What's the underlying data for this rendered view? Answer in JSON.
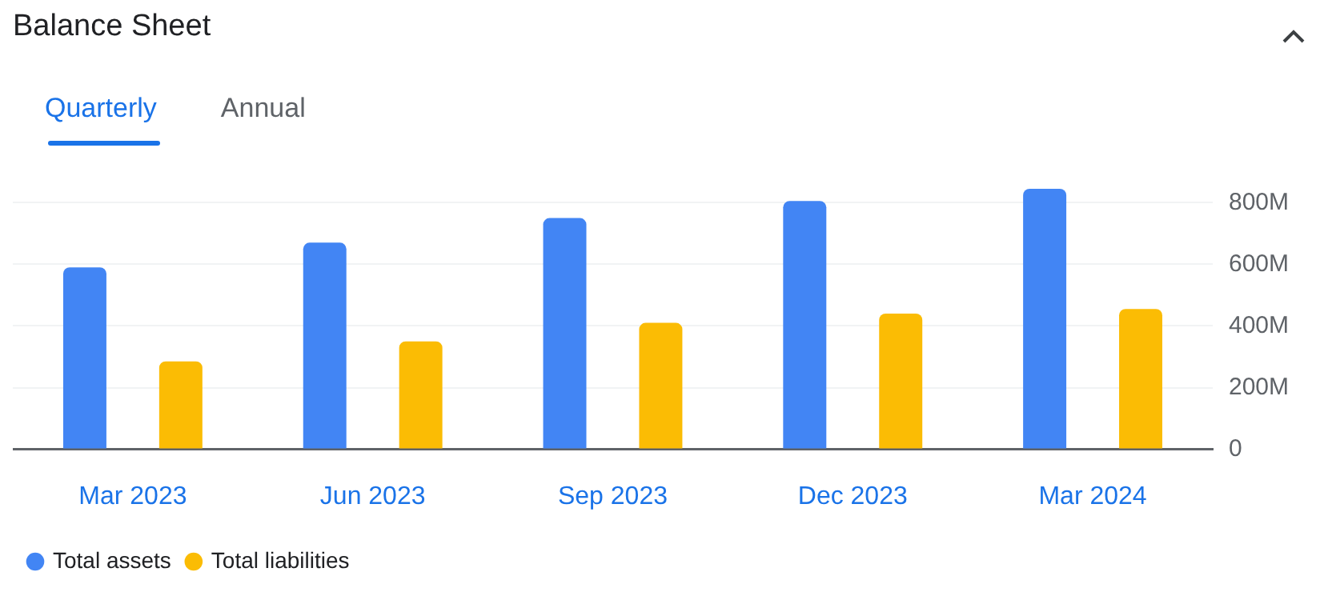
{
  "chart_data": {
    "type": "bar",
    "title": "Balance Sheet",
    "annotations": [
      "Quarterly",
      "Annual"
    ],
    "categories": [
      "Mar 2023",
      "Jun 2023",
      "Sep 2023",
      "Dec 2023",
      "Mar 2024"
    ],
    "series": [
      {
        "name": "Total assets",
        "color": "#4285f4",
        "values": [
          590,
          670,
          750,
          805,
          845
        ]
      },
      {
        "name": "Total liabilities",
        "color": "#fbbc04",
        "values": [
          285,
          350,
          410,
          440,
          455
        ]
      }
    ],
    "ylim": [
      0,
      850
    ],
    "yticks": [
      0,
      {
        "value": 200,
        "label": "200M"
      },
      {
        "value": 400,
        "label": "400M"
      },
      {
        "value": 600,
        "label": "600M"
      },
      {
        "value": 800,
        "label": "800M"
      }
    ],
    "grid": "y",
    "legend": "bottom"
  }
}
